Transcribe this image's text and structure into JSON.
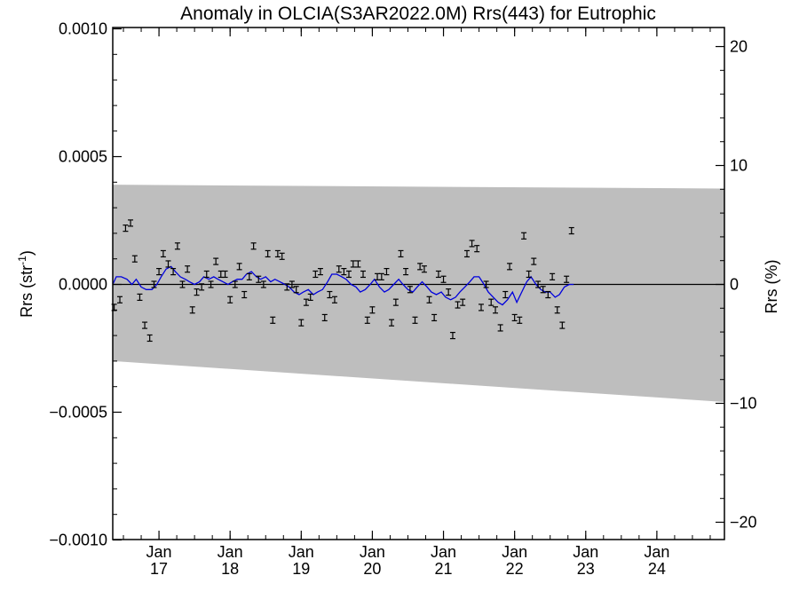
{
  "chart_data": {
    "type": "scatter",
    "title": "Anomaly in OLCIA(S3AR2022.0M) Rrs(443) for Eutrophic",
    "ylabel_main": "Rrs (str",
    "ylabel_sup": "-1",
    "ylabel_close": ")",
    "y2label": "Rrs (%)",
    "ylim": [
      -0.001,
      0.001
    ],
    "y2lim": [
      -21.5,
      21.5
    ],
    "xlim": [
      2016.35,
      2024.95
    ],
    "yticks": [
      {
        "v": 0.001,
        "label": "0.0010"
      },
      {
        "v": 0.0005,
        "label": "0.0005"
      },
      {
        "v": 0.0,
        "label": "0.0000"
      },
      {
        "v": -0.0005,
        "label": "−0.0005"
      },
      {
        "v": -0.001,
        "label": "−0.0010"
      }
    ],
    "y2ticks": [
      {
        "v": 20,
        "label": "20"
      },
      {
        "v": 10,
        "label": "10"
      },
      {
        "v": 0,
        "label": "0"
      },
      {
        "v": -10,
        "label": "−10"
      },
      {
        "v": -20,
        "label": "−20"
      }
    ],
    "xticks": [
      {
        "v": 2017.0,
        "month": "Jan",
        "year": "17"
      },
      {
        "v": 2018.0,
        "month": "Jan",
        "year": "18"
      },
      {
        "v": 2019.0,
        "month": "Jan",
        "year": "19"
      },
      {
        "v": 2020.0,
        "month": "Jan",
        "year": "20"
      },
      {
        "v": 2021.0,
        "month": "Jan",
        "year": "21"
      },
      {
        "v": 2022.0,
        "month": "Jan",
        "year": "22"
      },
      {
        "v": 2023.0,
        "month": "Jan",
        "year": "23"
      },
      {
        "v": 2024.0,
        "month": "Jan",
        "year": "24"
      }
    ],
    "band": {
      "upper": [
        0.00039,
        0.000375
      ],
      "lower": [
        -0.0003,
        -0.00046
      ]
    },
    "band_color": "#bebebe",
    "line_color": "#0000dd",
    "points": [
      [
        2016.37,
        -9e-05
      ],
      [
        2016.45,
        -6e-05
      ],
      [
        2016.53,
        0.00022
      ],
      [
        2016.6,
        0.00024
      ],
      [
        2016.66,
        0.0001
      ],
      [
        2016.73,
        -5e-05
      ],
      [
        2016.8,
        -0.00016
      ],
      [
        2016.87,
        -0.00021
      ],
      [
        2016.93,
        0.0
      ],
      [
        2017.0,
        5e-05
      ],
      [
        2017.06,
        0.00012
      ],
      [
        2017.13,
        8e-05
      ],
      [
        2017.2,
        5e-05
      ],
      [
        2017.26,
        0.00015
      ],
      [
        2017.33,
        0.0
      ],
      [
        2017.4,
        6e-05
      ],
      [
        2017.47,
        -0.0001
      ],
      [
        2017.53,
        -3e-05
      ],
      [
        2017.6,
        -1e-05
      ],
      [
        2017.67,
        4e-05
      ],
      [
        2017.73,
        0.0
      ],
      [
        2017.8,
        9e-05
      ],
      [
        2017.87,
        4e-05
      ],
      [
        2017.93,
        4e-05
      ],
      [
        2018.0,
        -6e-05
      ],
      [
        2018.07,
        0.0
      ],
      [
        2018.13,
        7e-05
      ],
      [
        2018.2,
        -4e-05
      ],
      [
        2018.27,
        3e-05
      ],
      [
        2018.33,
        0.00015
      ],
      [
        2018.4,
        2e-05
      ],
      [
        2018.47,
        0.0
      ],
      [
        2018.53,
        0.00012
      ],
      [
        2018.6,
        -0.00014
      ],
      [
        2018.67,
        0.00012
      ],
      [
        2018.73,
        0.00011
      ],
      [
        2018.8,
        -1e-05
      ],
      [
        2018.87,
        0.0
      ],
      [
        2018.93,
        -2e-05
      ],
      [
        2019.0,
        -0.00015
      ],
      [
        2019.07,
        -7e-05
      ],
      [
        2019.13,
        -5e-05
      ],
      [
        2019.2,
        4e-05
      ],
      [
        2019.27,
        5e-05
      ],
      [
        2019.33,
        -0.00013
      ],
      [
        2019.4,
        -4e-05
      ],
      [
        2019.47,
        -6e-05
      ],
      [
        2019.53,
        6e-05
      ],
      [
        2019.6,
        5e-05
      ],
      [
        2019.67,
        4e-05
      ],
      [
        2019.73,
        8e-05
      ],
      [
        2019.8,
        8e-05
      ],
      [
        2019.87,
        4e-05
      ],
      [
        2019.93,
        -0.00014
      ],
      [
        2020.0,
        -0.0001
      ],
      [
        2020.07,
        3e-05
      ],
      [
        2020.13,
        3e-05
      ],
      [
        2020.2,
        5e-05
      ],
      [
        2020.27,
        -0.00015
      ],
      [
        2020.33,
        -7e-05
      ],
      [
        2020.4,
        0.00012
      ],
      [
        2020.47,
        5e-05
      ],
      [
        2020.53,
        -2e-05
      ],
      [
        2020.6,
        -0.00014
      ],
      [
        2020.67,
        7e-05
      ],
      [
        2020.73,
        6e-05
      ],
      [
        2020.8,
        -6e-05
      ],
      [
        2020.87,
        -0.00013
      ],
      [
        2020.93,
        4e-05
      ],
      [
        2021.0,
        2e-05
      ],
      [
        2021.07,
        -3e-05
      ],
      [
        2021.13,
        -0.0002
      ],
      [
        2021.2,
        -8e-05
      ],
      [
        2021.27,
        -7e-05
      ],
      [
        2021.33,
        0.00012
      ],
      [
        2021.4,
        0.00016
      ],
      [
        2021.47,
        0.00014
      ],
      [
        2021.53,
        -9e-05
      ],
      [
        2021.6,
        0.0
      ],
      [
        2021.67,
        -7e-05
      ],
      [
        2021.73,
        -0.0001
      ],
      [
        2021.8,
        -0.00017
      ],
      [
        2021.87,
        -4e-05
      ],
      [
        2021.93,
        7e-05
      ],
      [
        2022.0,
        -0.00013
      ],
      [
        2022.07,
        -0.00014
      ],
      [
        2022.13,
        0.00019
      ],
      [
        2022.2,
        4e-05
      ],
      [
        2022.27,
        9e-05
      ],
      [
        2022.33,
        0.0
      ],
      [
        2022.4,
        -2e-05
      ],
      [
        2022.47,
        -4e-05
      ],
      [
        2022.53,
        3e-05
      ],
      [
        2022.6,
        -0.0001
      ],
      [
        2022.67,
        -0.00016
      ],
      [
        2022.73,
        2e-05
      ],
      [
        2022.8,
        0.00021
      ]
    ],
    "smooth": [
      [
        2016.35,
        0.0
      ],
      [
        2016.4,
        3e-05
      ],
      [
        2016.47,
        3e-05
      ],
      [
        2016.55,
        2e-05
      ],
      [
        2016.62,
        0.0
      ],
      [
        2016.68,
        2e-05
      ],
      [
        2016.75,
        -1e-05
      ],
      [
        2016.82,
        -2e-05
      ],
      [
        2016.9,
        -2e-05
      ],
      [
        2016.97,
        0.0
      ],
      [
        2017.03,
        3e-05
      ],
      [
        2017.1,
        6e-05
      ],
      [
        2017.17,
        7e-05
      ],
      [
        2017.23,
        5e-05
      ],
      [
        2017.3,
        3e-05
      ],
      [
        2017.37,
        2e-05
      ],
      [
        2017.43,
        1e-05
      ],
      [
        2017.5,
        0.0
      ],
      [
        2017.57,
        1e-05
      ],
      [
        2017.63,
        3e-05
      ],
      [
        2017.7,
        2e-05
      ],
      [
        2017.77,
        3e-05
      ],
      [
        2017.83,
        2e-05
      ],
      [
        2017.9,
        1e-05
      ],
      [
        2017.97,
        0.0
      ],
      [
        2018.03,
        1e-05
      ],
      [
        2018.1,
        2e-05
      ],
      [
        2018.17,
        2e-05
      ],
      [
        2018.23,
        4e-05
      ],
      [
        2018.3,
        5e-05
      ],
      [
        2018.37,
        3e-05
      ],
      [
        2018.43,
        2e-05
      ],
      [
        2018.5,
        3e-05
      ],
      [
        2018.57,
        1e-05
      ],
      [
        2018.63,
        2e-05
      ],
      [
        2018.7,
        1e-05
      ],
      [
        2018.77,
        0.0
      ],
      [
        2018.83,
        -1e-05
      ],
      [
        2018.9,
        -3e-05
      ],
      [
        2018.97,
        -4e-05
      ],
      [
        2019.03,
        -3e-05
      ],
      [
        2019.1,
        -2e-05
      ],
      [
        2019.17,
        -4e-05
      ],
      [
        2019.23,
        -3e-05
      ],
      [
        2019.3,
        -2e-05
      ],
      [
        2019.37,
        1e-05
      ],
      [
        2019.43,
        4e-05
      ],
      [
        2019.5,
        4e-05
      ],
      [
        2019.57,
        3e-05
      ],
      [
        2019.63,
        2e-05
      ],
      [
        2019.7,
        0.0
      ],
      [
        2019.77,
        -1e-05
      ],
      [
        2019.83,
        -3e-05
      ],
      [
        2019.9,
        -2e-05
      ],
      [
        2019.97,
        0.0
      ],
      [
        2020.03,
        2e-05
      ],
      [
        2020.1,
        -1e-05
      ],
      [
        2020.17,
        -3e-05
      ],
      [
        2020.23,
        -2e-05
      ],
      [
        2020.3,
        0.0
      ],
      [
        2020.37,
        2e-05
      ],
      [
        2020.43,
        0.0
      ],
      [
        2020.5,
        -2e-05
      ],
      [
        2020.57,
        -3e-05
      ],
      [
        2020.63,
        -1e-05
      ],
      [
        2020.7,
        1e-05
      ],
      [
        2020.77,
        -1e-05
      ],
      [
        2020.83,
        -3e-05
      ],
      [
        2020.9,
        -4e-05
      ],
      [
        2020.97,
        -3e-05
      ],
      [
        2021.03,
        -5e-05
      ],
      [
        2021.1,
        -6e-05
      ],
      [
        2021.17,
        -5e-05
      ],
      [
        2021.23,
        -3e-05
      ],
      [
        2021.3,
        -1e-05
      ],
      [
        2021.37,
        1e-05
      ],
      [
        2021.43,
        3e-05
      ],
      [
        2021.5,
        3e-05
      ],
      [
        2021.57,
        0.0
      ],
      [
        2021.63,
        -3e-05
      ],
      [
        2021.7,
        -5e-05
      ],
      [
        2021.77,
        -7e-05
      ],
      [
        2021.83,
        -8e-05
      ],
      [
        2021.9,
        -6e-05
      ],
      [
        2021.97,
        -3e-05
      ],
      [
        2022.03,
        -7e-05
      ],
      [
        2022.1,
        -3e-05
      ],
      [
        2022.17,
        1e-05
      ],
      [
        2022.23,
        3e-05
      ],
      [
        2022.3,
        0.0
      ],
      [
        2022.37,
        -2e-05
      ],
      [
        2022.43,
        -3e-05
      ],
      [
        2022.5,
        -3e-05
      ],
      [
        2022.57,
        -5e-05
      ],
      [
        2022.63,
        -4e-05
      ],
      [
        2022.7,
        -1e-05
      ],
      [
        2022.77,
        0.0
      ],
      [
        2022.83,
        0.0
      ]
    ]
  }
}
